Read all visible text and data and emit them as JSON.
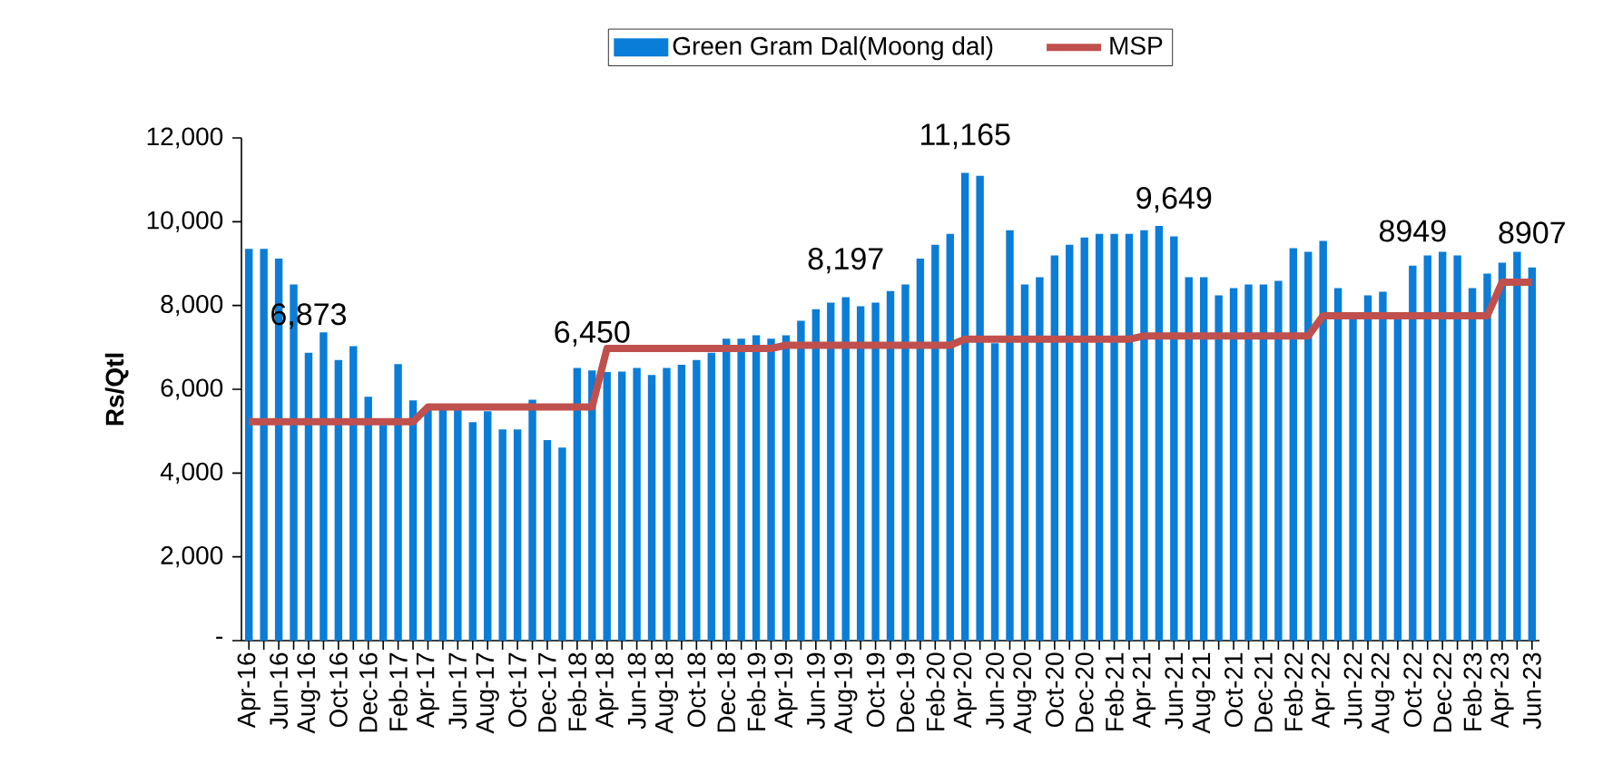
{
  "chart_data": {
    "type": "bar",
    "ylabel": "Rs/Qtl",
    "categories": [
      "Apr-16",
      null,
      "Jun-16",
      null,
      "Aug-16",
      null,
      "Oct-16",
      null,
      "Dec-16",
      null,
      "Feb-17",
      null,
      "Apr-17",
      null,
      "Jun-17",
      null,
      "Aug-17",
      null,
      "Oct-17",
      null,
      "Dec-17",
      null,
      "Feb-18",
      null,
      "Apr-18",
      null,
      "Jun-18",
      null,
      "Aug-18",
      null,
      "Oct-18",
      null,
      "Dec-18",
      null,
      "Feb-19",
      null,
      "Apr-19",
      null,
      "Jun-19",
      null,
      "Aug-19",
      null,
      "Oct-19",
      null,
      "Dec-19",
      null,
      "Feb-20",
      null,
      "Apr-20",
      null,
      "Jun-20",
      null,
      "Aug-20",
      null,
      "Oct-20",
      null,
      "Dec-20",
      null,
      "Feb-21",
      null,
      "Apr-21",
      null,
      "Jun-21",
      null,
      "Aug-21",
      null,
      "Oct-21",
      null,
      "Dec-21",
      null,
      "Feb-22",
      null,
      "Apr-22",
      null,
      "Jun-22",
      null,
      "Aug-22",
      null,
      "Oct-22",
      null,
      "Dec-22",
      null,
      "Feb-23",
      null,
      "Apr-23",
      null,
      "Jun-23"
    ],
    "series": [
      {
        "name": "Green Gram Dal(Moong dal)",
        "color": "#0a7dd8",
        "values": [
          9350,
          9350,
          9120,
          8500,
          6873,
          7360,
          6700,
          7030,
          5820,
          5150,
          6600,
          5735,
          5550,
          5580,
          5580,
          5215,
          5475,
          5040,
          5040,
          5750,
          4785,
          4610,
          6510,
          6450,
          6410,
          6425,
          6510,
          6340,
          6510,
          6585,
          6700,
          6873,
          7205,
          7205,
          7290,
          7205,
          7290,
          7637,
          7911,
          8069,
          8197,
          7983,
          8069,
          8343,
          8501,
          9121,
          9452,
          9712,
          11165,
          11095,
          7100,
          9798,
          8501,
          8674,
          9193,
          9452,
          9625,
          9712,
          9712,
          9712,
          9798,
          9899,
          9649,
          8674,
          8674,
          8242,
          8415,
          8501,
          8501,
          8588,
          9366,
          9280,
          9539,
          8415,
          7700,
          8242,
          8329,
          7700,
          8949,
          9193,
          9280,
          9193,
          8415,
          8761,
          9020,
          9280,
          8907
        ],
        "value_labels": [
          null,
          null,
          null,
          null,
          "6,873",
          null,
          null,
          null,
          null,
          null,
          null,
          null,
          null,
          null,
          null,
          null,
          null,
          null,
          null,
          null,
          null,
          null,
          null,
          "6,450",
          null,
          null,
          null,
          null,
          null,
          null,
          null,
          null,
          null,
          null,
          null,
          null,
          null,
          null,
          null,
          null,
          "8,197",
          null,
          null,
          null,
          null,
          null,
          null,
          null,
          "11,165",
          null,
          null,
          null,
          null,
          null,
          null,
          null,
          null,
          null,
          null,
          null,
          null,
          null,
          "9,649",
          null,
          null,
          null,
          null,
          null,
          null,
          null,
          null,
          null,
          null,
          null,
          null,
          null,
          null,
          null,
          "8949",
          null,
          null,
          null,
          null,
          null,
          null,
          null,
          "8907"
        ]
      },
      {
        "name": "MSP",
        "type": "line",
        "color": "#c0504d",
        "values": [
          5225,
          5225,
          5225,
          5225,
          5225,
          5225,
          5225,
          5225,
          5225,
          5225,
          5225,
          5225,
          5575,
          5575,
          5575,
          5575,
          5575,
          5575,
          5575,
          5575,
          5575,
          5575,
          5575,
          5575,
          6975,
          6975,
          6975,
          6975,
          6975,
          6975,
          6975,
          6975,
          6975,
          6975,
          6975,
          6975,
          7050,
          7050,
          7050,
          7050,
          7050,
          7050,
          7050,
          7050,
          7050,
          7050,
          7050,
          7050,
          7196,
          7196,
          7196,
          7196,
          7196,
          7196,
          7196,
          7196,
          7196,
          7196,
          7196,
          7196,
          7275,
          7275,
          7275,
          7275,
          7275,
          7275,
          7275,
          7275,
          7275,
          7275,
          7275,
          7275,
          7755,
          7755,
          7755,
          7755,
          7755,
          7755,
          7755,
          7755,
          7755,
          7755,
          7755,
          7755,
          8558,
          8558,
          8558
        ]
      }
    ],
    "ylim": [
      0,
      12000
    ],
    "yticks": [
      {
        "value": 0,
        "label": "-"
      },
      {
        "value": 2000,
        "label": "2,000"
      },
      {
        "value": 4000,
        "label": "4,000"
      },
      {
        "value": 6000,
        "label": "6,000"
      },
      {
        "value": 8000,
        "label": "8,000"
      },
      {
        "value": 10000,
        "label": "10,000"
      },
      {
        "value": 12000,
        "label": "12,000"
      }
    ],
    "grid": false,
    "legend": "top"
  }
}
